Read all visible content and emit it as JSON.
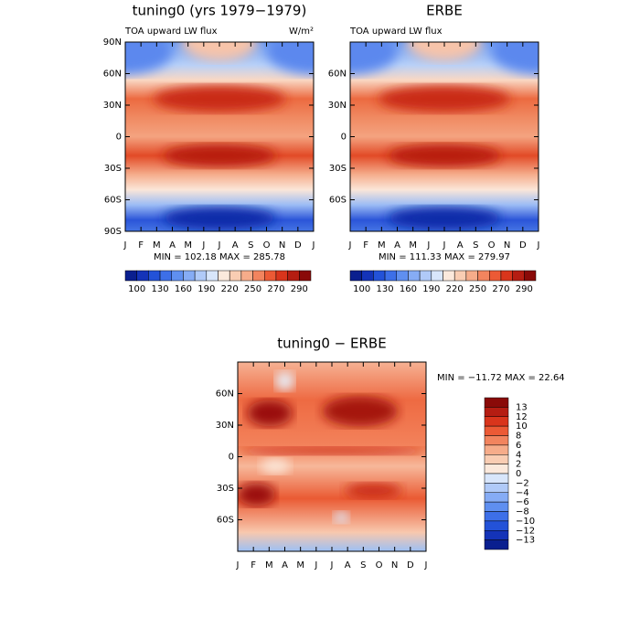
{
  "chart_data": [
    {
      "type": "contour",
      "title": "tuning0 (yrs 1979−1979)",
      "subtitle": "TOA upward LW flux",
      "units": "W/m²",
      "stats": "MIN = 102.18 MAX = 285.78",
      "categories": [
        "J",
        "F",
        "M",
        "A",
        "M",
        "J",
        "J",
        "A",
        "S",
        "O",
        "N",
        "D",
        "J"
      ],
      "ylim": [
        -90,
        90
      ],
      "yticks": [
        {
          "value": 90,
          "label": "90N"
        },
        {
          "value": 60,
          "label": "60N"
        },
        {
          "value": 30,
          "label": "30N"
        },
        0,
        {
          "value": -30,
          "label": "30S"
        },
        {
          "value": -60,
          "label": "60S"
        },
        {
          "value": -90,
          "label": "90S"
        }
      ],
      "colorbar_orientation": "horizontal",
      "colorbar_colors": [
        "#0a1f8f",
        "#1433b8",
        "#2352d8",
        "#3d6fe8",
        "#5f8ff0",
        "#86acf5",
        "#b0caf8",
        "#d8e6fb",
        "#fbe9dc",
        "#f9cdb3",
        "#f6ac8a",
        "#f2845e",
        "#ec5a35",
        "#d9351c",
        "#b51d12",
        "#8a0a08"
      ],
      "colorbar_ticks": [
        100,
        130,
        160,
        190,
        220,
        250,
        270,
        290
      ]
    },
    {
      "type": "contour",
      "title": "ERBE",
      "subtitle": "TOA upward LW flux",
      "stats": "MIN = 111.33 MAX = 279.97",
      "categories": [
        "J",
        "F",
        "M",
        "A",
        "M",
        "J",
        "J",
        "A",
        "S",
        "O",
        "N",
        "D",
        "J"
      ],
      "ylim": [
        -90,
        90
      ],
      "yticks": [
        {
          "value": 60,
          "label": "60N"
        },
        {
          "value": 30,
          "label": "30N"
        },
        0,
        {
          "value": -30,
          "label": "30S"
        },
        {
          "value": -60,
          "label": "60S"
        }
      ],
      "colorbar_orientation": "horizontal",
      "colorbar_colors": [
        "#0a1f8f",
        "#1433b8",
        "#2352d8",
        "#3d6fe8",
        "#5f8ff0",
        "#86acf5",
        "#b0caf8",
        "#d8e6fb",
        "#fbe9dc",
        "#f9cdb3",
        "#f6ac8a",
        "#f2845e",
        "#ec5a35",
        "#d9351c",
        "#b51d12",
        "#8a0a08"
      ],
      "colorbar_ticks": [
        100,
        130,
        160,
        190,
        220,
        250,
        270,
        290
      ]
    },
    {
      "type": "contour",
      "title": "tuning0 − ERBE",
      "stats": "MIN = −11.72 MAX =  22.64",
      "categories": [
        "J",
        "F",
        "M",
        "A",
        "M",
        "J",
        "J",
        "A",
        "S",
        "O",
        "N",
        "D",
        "J"
      ],
      "ylim": [
        -90,
        90
      ],
      "yticks": [
        {
          "value": 60,
          "label": "60N"
        },
        {
          "value": 30,
          "label": "30N"
        },
        0,
        {
          "value": -30,
          "label": "30S"
        },
        {
          "value": -60,
          "label": "60S"
        }
      ],
      "colorbar_orientation": "vertical",
      "colorbar_colors": [
        "#8a0a08",
        "#b51d12",
        "#d9351c",
        "#ec5a35",
        "#f2845e",
        "#f6ac8a",
        "#f9cdb3",
        "#fbe9dc",
        "#d8e6fb",
        "#b0caf8",
        "#86acf5",
        "#5f8ff0",
        "#3d6fe8",
        "#2352d8",
        "#1433b8",
        "#0a1f8f"
      ],
      "colorbar_ticks": [
        13,
        12,
        10,
        8,
        6,
        4,
        2,
        0,
        {
          "value": -2,
          "label": "−2"
        },
        {
          "value": -4,
          "label": "−4"
        },
        {
          "value": -6,
          "label": "−6"
        },
        {
          "value": -8,
          "label": "−8"
        },
        {
          "value": -10,
          "label": "−10"
        },
        {
          "value": -12,
          "label": "−12"
        },
        {
          "value": -13,
          "label": "−13"
        }
      ]
    }
  ]
}
